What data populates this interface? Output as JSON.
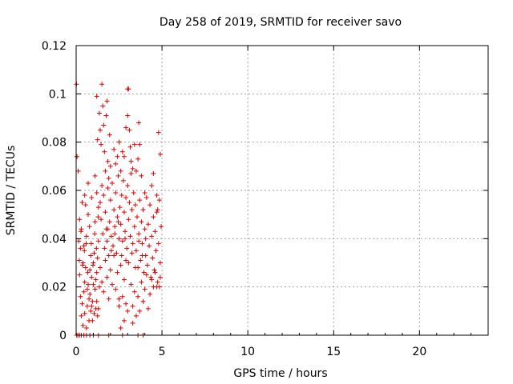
{
  "chart_data": {
    "type": "scatter",
    "title": "Day 258 of 2019, SRMTID for receiver savo",
    "xlabel": "GPS time / hours",
    "ylabel": "SRMTID / TECUs",
    "xlim": [
      0,
      24
    ],
    "ylim": [
      0,
      0.12
    ],
    "grid": true,
    "marker": "+",
    "colors": {
      "series": "#dd0000",
      "grid": "#a0a0a0",
      "axis": "#000000"
    },
    "x_ticks": [
      {
        "value": 0,
        "label": "0"
      },
      {
        "value": 5,
        "label": "5"
      },
      {
        "value": 10,
        "label": "10"
      },
      {
        "value": 15,
        "label": "15"
      },
      {
        "value": 20,
        "label": "20"
      }
    ],
    "y_ticks": [
      {
        "value": 0,
        "label": "0"
      },
      {
        "value": 0.02,
        "label": "0.02"
      },
      {
        "value": 0.04,
        "label": "0.04"
      },
      {
        "value": 0.06,
        "label": "0.06"
      },
      {
        "value": 0.08,
        "label": "0.08"
      },
      {
        "value": 0.1,
        "label": "0.1"
      },
      {
        "value": 0.12,
        "label": "0.12"
      }
    ],
    "series": [
      {
        "name": "SRMTID",
        "points": [
          [
            0.02,
            0.104
          ],
          [
            0.05,
            0.074
          ],
          [
            0.12,
            0.068
          ],
          [
            0.03,
            0.0
          ],
          [
            0.1,
            0.0
          ],
          [
            0.2,
            0.0
          ],
          [
            0.3,
            0.0
          ],
          [
            0.45,
            0.0
          ],
          [
            0.6,
            0.0
          ],
          [
            0.8,
            0.0
          ],
          [
            1.0,
            0.0
          ],
          [
            1.3,
            0.0
          ],
          [
            1.9,
            0.0
          ],
          [
            2.7,
            0.0
          ],
          [
            3.6,
            0.0
          ],
          [
            3.9,
            0.0
          ],
          [
            0.15,
            0.039
          ],
          [
            0.2,
            0.048
          ],
          [
            0.25,
            0.036
          ],
          [
            0.3,
            0.044
          ],
          [
            0.35,
            0.055
          ],
          [
            0.4,
            0.03
          ],
          [
            0.45,
            0.037
          ],
          [
            0.5,
            0.022
          ],
          [
            0.55,
            0.054
          ],
          [
            0.6,
            0.041
          ],
          [
            0.65,
            0.019
          ],
          [
            0.7,
            0.05
          ],
          [
            0.75,
            0.015
          ],
          [
            0.8,
            0.027
          ],
          [
            0.85,
            0.033
          ],
          [
            0.9,
            0.012
          ],
          [
            0.95,
            0.006
          ],
          [
            1.0,
            0.021
          ],
          [
            1.05,
            0.034
          ],
          [
            1.1,
            0.047
          ],
          [
            1.15,
            0.011
          ],
          [
            1.2,
            0.026
          ],
          [
            1.25,
            0.008
          ],
          [
            1.3,
            0.039
          ],
          [
            0.2,
            0.025
          ],
          [
            0.25,
            0.016
          ],
          [
            0.3,
            0.008
          ],
          [
            0.35,
            0.013
          ],
          [
            0.4,
            0.004
          ],
          [
            0.45,
            0.018
          ],
          [
            0.5,
            0.009
          ],
          [
            0.55,
            0.028
          ],
          [
            0.6,
            0.003
          ],
          [
            0.65,
            0.012
          ],
          [
            0.7,
            0.021
          ],
          [
            0.75,
            0.006
          ],
          [
            0.8,
            0.017
          ],
          [
            0.85,
            0.01
          ],
          [
            0.9,
            0.024
          ],
          [
            0.95,
            0.014
          ],
          [
            1.0,
            0.03
          ],
          [
            1.05,
            0.009
          ],
          [
            1.1,
            0.019
          ],
          [
            1.15,
            0.023
          ],
          [
            1.2,
            0.014
          ],
          [
            1.25,
            0.032
          ],
          [
            1.3,
            0.011
          ],
          [
            1.35,
            0.02
          ],
          [
            0.18,
            0.031
          ],
          [
            0.28,
            0.043
          ],
          [
            0.38,
            0.029
          ],
          [
            0.48,
            0.035
          ],
          [
            0.58,
            0.038
          ],
          [
            0.68,
            0.026
          ],
          [
            0.78,
            0.045
          ],
          [
            0.88,
            0.038
          ],
          [
            0.98,
            0.029
          ],
          [
            1.08,
            0.042
          ],
          [
            1.18,
            0.036
          ],
          [
            1.28,
            0.049
          ],
          [
            1.2,
            0.099
          ],
          [
            1.25,
            0.081
          ],
          [
            1.35,
            0.092
          ],
          [
            1.4,
            0.085
          ],
          [
            1.45,
            0.079
          ],
          [
            1.5,
            0.104
          ],
          [
            1.55,
            0.095
          ],
          [
            1.6,
            0.087
          ],
          [
            1.65,
            0.076
          ],
          [
            1.7,
            0.068
          ],
          [
            1.75,
            0.091
          ],
          [
            1.8,
            0.097
          ],
          [
            1.85,
            0.072
          ],
          [
            1.9,
            0.065
          ],
          [
            1.95,
            0.083
          ],
          [
            2.0,
            0.07
          ],
          [
            1.4,
            0.055
          ],
          [
            1.45,
            0.048
          ],
          [
            1.5,
            0.062
          ],
          [
            1.55,
            0.042
          ],
          [
            1.6,
            0.058
          ],
          [
            1.65,
            0.036
          ],
          [
            1.7,
            0.051
          ],
          [
            1.75,
            0.044
          ],
          [
            1.8,
            0.039
          ],
          [
            1.85,
            0.061
          ],
          [
            1.9,
            0.033
          ],
          [
            1.95,
            0.047
          ],
          [
            2.0,
            0.056
          ],
          [
            2.05,
            0.041
          ],
          [
            2.1,
            0.063
          ],
          [
            2.15,
            0.037
          ],
          [
            2.2,
            0.052
          ],
          [
            2.25,
            0.045
          ],
          [
            2.3,
            0.059
          ],
          [
            2.35,
            0.034
          ],
          [
            2.4,
            0.049
          ],
          [
            2.45,
            0.066
          ],
          [
            2.5,
            0.04
          ],
          [
            2.55,
            0.053
          ],
          [
            1.4,
            0.028
          ],
          [
            1.5,
            0.022
          ],
          [
            1.6,
            0.018
          ],
          [
            1.7,
            0.031
          ],
          [
            1.8,
            0.024
          ],
          [
            1.9,
            0.015
          ],
          [
            2.0,
            0.027
          ],
          [
            2.1,
            0.021
          ],
          [
            2.2,
            0.033
          ],
          [
            2.3,
            0.019
          ],
          [
            2.4,
            0.026
          ],
          [
            2.5,
            0.012
          ],
          [
            2.6,
            0.029
          ],
          [
            2.7,
            0.016
          ],
          [
            2.8,
            0.023
          ],
          [
            2.9,
            0.031
          ],
          [
            2.6,
            0.046
          ],
          [
            2.65,
            0.058
          ],
          [
            2.7,
            0.039
          ],
          [
            2.75,
            0.064
          ],
          [
            2.8,
            0.051
          ],
          [
            2.85,
            0.043
          ],
          [
            2.9,
            0.057
          ],
          [
            2.95,
            0.036
          ],
          [
            3.0,
            0.062
          ],
          [
            3.05,
            0.048
          ],
          [
            3.1,
            0.055
          ],
          [
            3.15,
            0.041
          ],
          [
            3.2,
            0.067
          ],
          [
            3.25,
            0.052
          ],
          [
            3.3,
            0.038
          ],
          [
            3.35,
            0.059
          ],
          [
            3.4,
            0.045
          ],
          [
            3.45,
            0.054
          ],
          [
            2.2,
            0.077
          ],
          [
            2.3,
            0.071
          ],
          [
            2.4,
            0.074
          ],
          [
            2.5,
            0.08
          ],
          [
            2.6,
            0.068
          ],
          [
            2.7,
            0.076
          ],
          [
            2.8,
            0.074
          ],
          [
            2.9,
            0.086
          ],
          [
            3.0,
            0.091
          ],
          [
            3.0,
            0.102
          ],
          [
            3.05,
            0.102
          ],
          [
            3.1,
            0.085
          ],
          [
            3.15,
            0.078
          ],
          [
            3.2,
            0.072
          ],
          [
            3.3,
            0.069
          ],
          [
            3.4,
            0.079
          ],
          [
            3.5,
            0.068
          ],
          [
            3.6,
            0.073
          ],
          [
            3.65,
            0.088
          ],
          [
            3.7,
            0.079
          ],
          [
            3.8,
            0.066
          ],
          [
            4.0,
            0.059
          ],
          [
            4.4,
            0.062
          ],
          [
            4.5,
            0.067
          ],
          [
            3.5,
            0.035
          ],
          [
            3.55,
            0.049
          ],
          [
            3.6,
            0.028
          ],
          [
            3.65,
            0.042
          ],
          [
            3.7,
            0.056
          ],
          [
            3.75,
            0.031
          ],
          [
            3.8,
            0.047
          ],
          [
            3.85,
            0.038
          ],
          [
            3.9,
            0.052
          ],
          [
            3.95,
            0.026
          ],
          [
            4.0,
            0.044
          ],
          [
            4.05,
            0.033
          ],
          [
            4.1,
            0.057
          ],
          [
            4.15,
            0.029
          ],
          [
            4.2,
            0.046
          ],
          [
            4.25,
            0.037
          ],
          [
            4.3,
            0.054
          ],
          [
            4.35,
            0.024
          ],
          [
            4.4,
            0.041
          ],
          [
            4.45,
            0.032
          ],
          [
            4.5,
            0.049
          ],
          [
            4.55,
            0.027
          ],
          [
            4.6,
            0.043
          ],
          [
            4.65,
            0.035
          ],
          [
            4.7,
            0.051
          ],
          [
            4.75,
            0.022
          ],
          [
            4.8,
            0.038
          ],
          [
            4.85,
            0.056
          ],
          [
            4.9,
            0.03
          ],
          [
            4.95,
            0.045
          ],
          [
            4.8,
            0.084
          ],
          [
            4.9,
            0.075
          ],
          [
            4.7,
            0.058
          ],
          [
            4.75,
            0.052
          ],
          [
            4.85,
            0.02
          ],
          [
            4.9,
            0.024
          ],
          [
            3.2,
            0.021
          ],
          [
            3.3,
            0.012
          ],
          [
            3.4,
            0.018
          ],
          [
            3.5,
            0.008
          ],
          [
            3.6,
            0.016
          ],
          [
            3.7,
            0.01
          ],
          [
            3.8,
            0.022
          ],
          [
            3.9,
            0.014
          ],
          [
            4.0,
            0.019
          ],
          [
            4.1,
            0.025
          ],
          [
            4.2,
            0.011
          ],
          [
            4.3,
            0.017
          ],
          [
            4.4,
            0.023
          ],
          [
            4.5,
            0.02
          ],
          [
            4.6,
            0.026
          ],
          [
            4.7,
            0.02
          ],
          [
            2.6,
            0.003
          ],
          [
            2.8,
            0.006
          ],
          [
            3.0,
            0.01
          ],
          [
            2.5,
            0.015
          ],
          [
            2.9,
            0.013
          ],
          [
            3.3,
            0.005
          ],
          [
            0.5,
            0.058
          ],
          [
            0.7,
            0.063
          ],
          [
            0.9,
            0.057
          ],
          [
            1.1,
            0.066
          ],
          [
            1.3,
            0.053
          ],
          [
            1.2,
            0.059
          ],
          [
            1.85,
            0.044
          ],
          [
            2.05,
            0.035
          ],
          [
            2.25,
            0.042
          ],
          [
            2.45,
            0.047
          ],
          [
            2.65,
            0.033
          ],
          [
            2.85,
            0.04
          ],
          [
            3.05,
            0.03
          ],
          [
            3.25,
            0.034
          ],
          [
            3.45,
            0.028
          ],
          [
            3.65,
            0.039
          ],
          [
            3.85,
            0.033
          ],
          [
            4.05,
            0.04
          ]
        ]
      }
    ]
  }
}
